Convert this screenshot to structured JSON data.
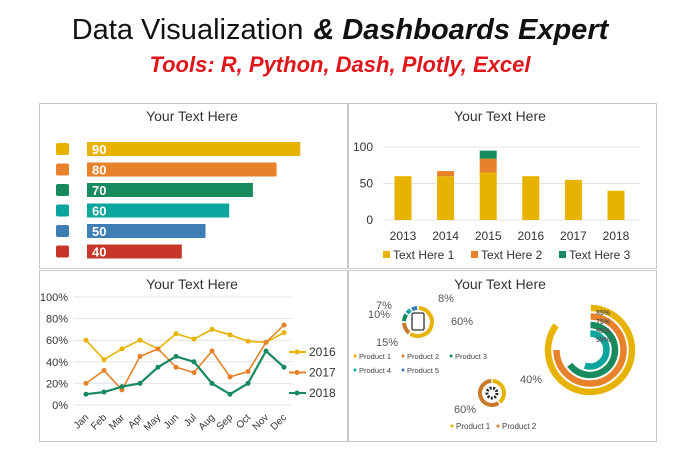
{
  "header": {
    "title_regular": "Data Visualization",
    "title_bold": "& Dashboards Expert",
    "subtitle": "Tools: R, Python, Dash, Plotly, Excel"
  },
  "colors": {
    "yellow": "#e8b200",
    "orange": "#e8822a",
    "green": "#178a5e",
    "teal": "#0aa59c",
    "blue": "#3f7db5",
    "red": "#c8352a",
    "title_red": "#e0161b"
  },
  "chart_data": [
    {
      "type": "bar",
      "orientation": "horizontal",
      "title": "Your Text Here",
      "values": [
        90,
        80,
        70,
        60,
        50,
        40
      ],
      "labels": [
        "90",
        "80",
        "70",
        "60",
        "50",
        "40"
      ],
      "icons": [
        "box-icon",
        "warehouse-icon",
        "delivery-truck-icon",
        "network-icon",
        "growth-people-icon",
        "family-icon"
      ],
      "colors": [
        "#e8b200",
        "#e8822a",
        "#178a5e",
        "#0aa59c",
        "#3f7db5",
        "#c8352a"
      ]
    },
    {
      "type": "bar",
      "stacked": true,
      "title": "Your Text Here",
      "categories": [
        "2013",
        "2014",
        "2015",
        "2016",
        "2017",
        "2018"
      ],
      "series": [
        {
          "name": "Text Here 1",
          "values": [
            60,
            60,
            65,
            60,
            55,
            40
          ],
          "color": "#e8b200"
        },
        {
          "name": "Text Here 2",
          "values": [
            0,
            7,
            19,
            0,
            0,
            0
          ],
          "color": "#e8822a"
        },
        {
          "name": "Text Here 3",
          "values": [
            0,
            0,
            11,
            0,
            0,
            0
          ],
          "color": "#178a5e"
        }
      ],
      "ylim": [
        0,
        100
      ],
      "yticks": [
        "0",
        "50",
        "100"
      ],
      "grid": true,
      "legend": "bottom"
    },
    {
      "type": "line",
      "title": "Your Text Here",
      "categories": [
        "Jan",
        "Feb",
        "Mar",
        "Apr",
        "May",
        "Jun",
        "Jul",
        "Aug",
        "Sep",
        "Oct",
        "Nov",
        "Dec"
      ],
      "series": [
        {
          "name": "2016",
          "values": [
            60,
            42,
            52,
            60,
            52,
            66,
            61,
            70,
            65,
            59,
            58,
            67
          ],
          "color": "#e8b200"
        },
        {
          "name": "2017",
          "values": [
            20,
            32,
            14,
            45,
            52,
            35,
            30,
            50,
            26,
            31,
            58,
            74
          ],
          "color": "#e8822a"
        },
        {
          "name": "2018",
          "values": [
            10,
            12,
            17,
            20,
            35,
            45,
            40,
            20,
            10,
            20,
            50,
            35
          ],
          "color": "#178a5e"
        }
      ],
      "ylim": [
        0,
        100
      ],
      "yticks": [
        "0%",
        "20%",
        "40%",
        "60%",
        "80%",
        "100%"
      ],
      "grid": true,
      "legend": "right"
    },
    {
      "type": "pie",
      "title": "Your Text Here",
      "donuts": [
        {
          "icon": "clipboard-icon",
          "slices": [
            {
              "label": "60%",
              "value": 60,
              "color": "#e8b200"
            },
            {
              "label": "15%",
              "value": 15,
              "color": "#c87a2a"
            },
            {
              "label": "10%",
              "value": 10,
              "color": "#178a5e"
            },
            {
              "label": "7%",
              "value": 7,
              "color": "#0aa59c"
            },
            {
              "label": "8%",
              "value": 8,
              "color": "#3f7db5"
            }
          ],
          "legend": [
            "Product 1",
            "Product 2",
            "Product 3",
            "Product 4",
            "Product 5"
          ]
        },
        {
          "icon": "gear-icon",
          "slices": [
            {
              "label": "40%",
              "value": 40,
              "color": "#e8b200"
            },
            {
              "label": "60%",
              "value": 60,
              "color": "#c87a2a"
            }
          ],
          "legend": [
            "Product 1",
            "Product 2"
          ]
        }
      ],
      "radial": [
        {
          "label": "85%",
          "value": 85,
          "color": "#e8b200"
        },
        {
          "label": "75%",
          "value": 75,
          "color": "#e8822a"
        },
        {
          "label": "65%",
          "value": 65,
          "color": "#178a5e"
        },
        {
          "label": "55%",
          "value": 55,
          "color": "#0aa59c"
        }
      ]
    }
  ]
}
